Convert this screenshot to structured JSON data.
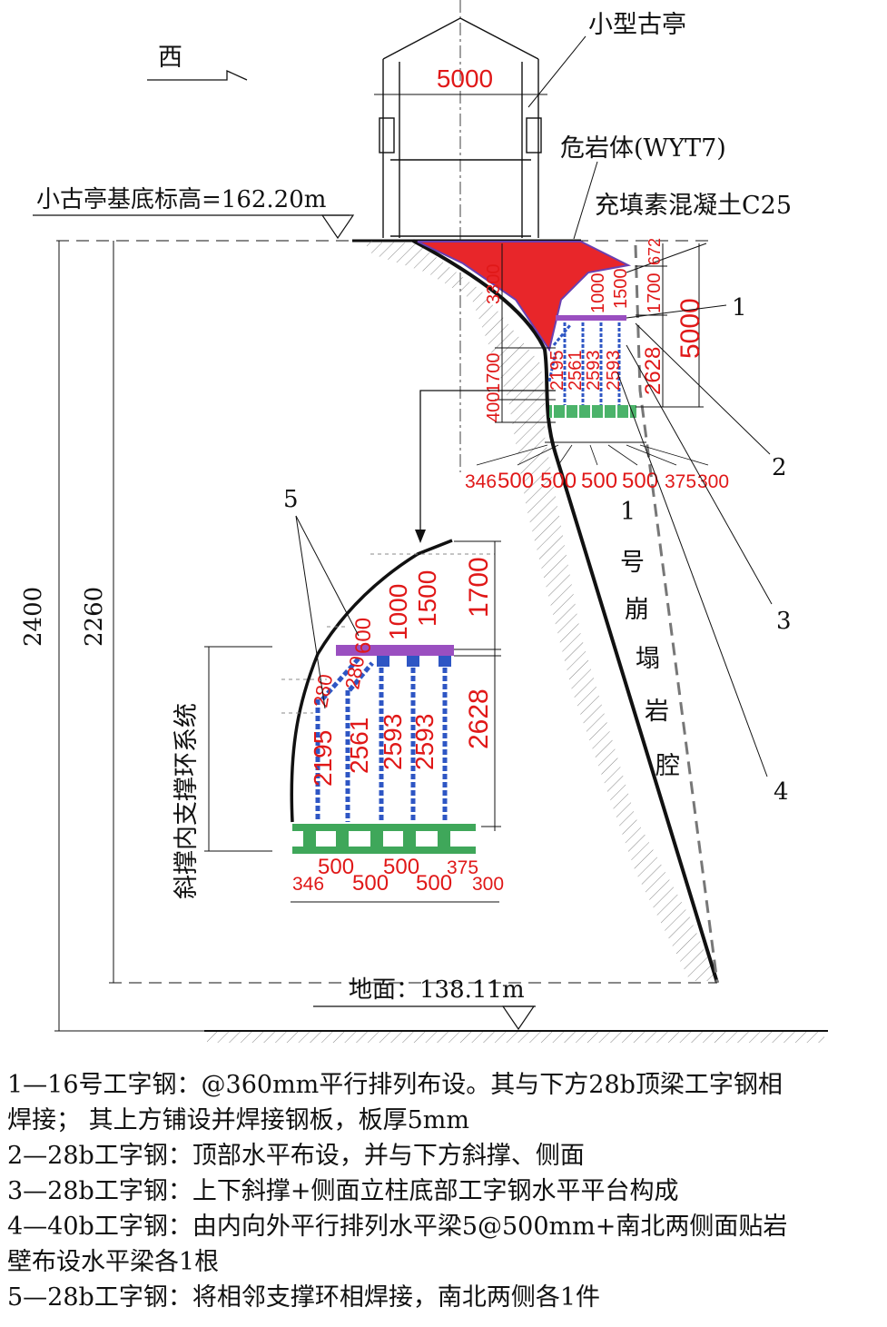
{
  "labels": {
    "pavilion": "小型古亭",
    "west": "西",
    "rock_mass": "危岩体(WYT7)",
    "concrete": "充填素混凝土C25",
    "base_elev": "小古亭基底标高=162.20m",
    "ground_elev": "地面：138.11m",
    "cavity_chars": [
      "1",
      "号",
      "崩",
      "塌",
      "岩",
      "腔"
    ],
    "system": "斜撑内支撑环系统",
    "callouts": [
      "1",
      "2",
      "3",
      "4",
      "5"
    ]
  },
  "dims": {
    "pavilion_width": "5000",
    "total_height": "2400",
    "height2": "2260",
    "left_3300": "3300",
    "left_1700": "1700",
    "left_400": "400",
    "right_672": "672",
    "right_1700": "1700",
    "right_2628": "2628",
    "right_5000": "5000",
    "cols_small": [
      "2195",
      "2561",
      "2593",
      "2593"
    ],
    "top_small": [
      "1000",
      "1500"
    ],
    "bottom_small": [
      "346",
      "500",
      "500",
      "500",
      "500",
      "375",
      "300"
    ],
    "detail_top": [
      "600",
      "1000",
      "1500",
      "1700"
    ],
    "detail_diag": [
      "280",
      "280"
    ],
    "detail_cols": [
      "2195",
      "2561",
      "2593",
      "2593"
    ],
    "detail_2628": "2628",
    "detail_bottom_upper": [
      "500",
      "500",
      "375"
    ],
    "detail_bottom_lower": [
      "346",
      "500",
      "500",
      "300"
    ]
  },
  "notes": [
    "1—16号工字钢：@360mm平行排列布设。其与下方28b顶梁工字钢相",
    "焊接；  其上方铺设并焊接钢板，板厚5mm",
    "2—28b工字钢：顶部水平布设，并与下方斜撑、侧面",
    "3—28b工字钢：上下斜撑+侧面立柱底部工字钢水平平台构成",
    "4—40b工字钢：由内向外平行排列水平梁5@500mm+南北两侧面贴岩",
    "壁布设水平梁各1根",
    "5—28b工字钢：将相邻支撑环相焊接，南北两侧各1件"
  ],
  "colors": {
    "concrete_fill": "#e8262a",
    "steel_blue": "#2e56c4",
    "steel_purple": "#9a4fc0",
    "platform_green": "#3fa75a",
    "dim_red": "#e01818"
  }
}
